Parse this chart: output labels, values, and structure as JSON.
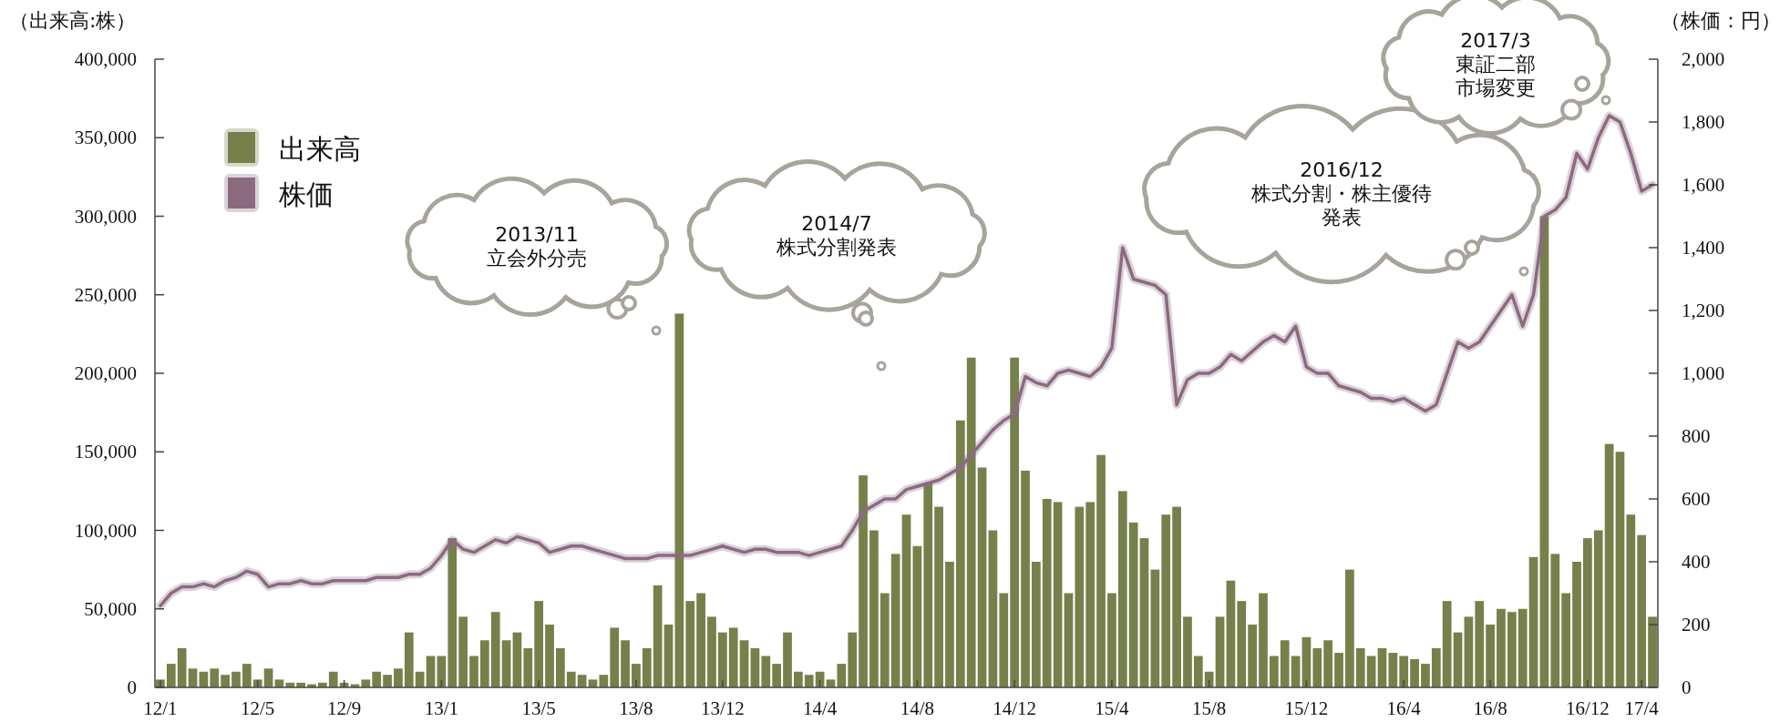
{
  "chart_data": {
    "type": "bar",
    "ylabel": "（出来高:株）",
    "y2label": "（株価：円）",
    "legend": "top left",
    "grid": false,
    "categories": [
      "12/1",
      null,
      null,
      null,
      null,
      null,
      null,
      null,
      null,
      "12/5",
      null,
      null,
      null,
      null,
      null,
      null,
      null,
      "12/9",
      null,
      null,
      null,
      null,
      null,
      null,
      null,
      null,
      "13/1",
      null,
      null,
      null,
      null,
      null,
      null,
      null,
      null,
      "13/5",
      null,
      null,
      null,
      null,
      null,
      null,
      null,
      null,
      "13/8",
      null,
      null,
      null,
      null,
      null,
      null,
      null,
      "13/12",
      null,
      null,
      null,
      null,
      null,
      null,
      null,
      null,
      "14/4",
      null,
      null,
      null,
      null,
      null,
      null,
      null,
      null,
      "14/8",
      null,
      null,
      null,
      null,
      null,
      null,
      null,
      null,
      "14/12",
      null,
      null,
      null,
      null,
      null,
      null,
      null,
      null,
      "15/4",
      null,
      null,
      null,
      null,
      null,
      null,
      null,
      null,
      "15/8",
      null,
      null,
      null,
      null,
      null,
      null,
      null,
      null,
      "15/12",
      null,
      null,
      null,
      null,
      null,
      null,
      null,
      null,
      "16/4",
      null,
      null,
      null,
      null,
      null,
      null,
      null,
      "16/8",
      null,
      null,
      null,
      null,
      null,
      null,
      null,
      null,
      "16/12",
      null,
      null,
      null,
      null,
      "17/4",
      null
    ],
    "ylim": [
      0,
      400000
    ],
    "yticks": [
      {
        "value": 0,
        "label": "0"
      },
      {
        "value": 50000,
        "label": "50,000"
      },
      {
        "value": 100000,
        "label": "100,000"
      },
      {
        "value": 150000,
        "label": "150,000"
      },
      {
        "value": 200000,
        "label": "200,000"
      },
      {
        "value": 250000,
        "label": "250,000"
      },
      {
        "value": 300000,
        "label": "300,000"
      },
      {
        "value": 350000,
        "label": "350,000"
      },
      {
        "value": 400000,
        "label": "400,000"
      }
    ],
    "y2lim": [
      0,
      2000
    ],
    "y2ticks": [
      {
        "value": 0,
        "label": "0"
      },
      {
        "value": 200,
        "label": "200"
      },
      {
        "value": 400,
        "label": "400"
      },
      {
        "value": 600,
        "label": "600"
      },
      {
        "value": 800,
        "label": "800"
      },
      {
        "value": 1000,
        "label": "1,000"
      },
      {
        "value": 1200,
        "label": "1,200"
      },
      {
        "value": 1400,
        "label": "1,400"
      },
      {
        "value": 1600,
        "label": "1,600"
      },
      {
        "value": 1800,
        "label": "1,800"
      },
      {
        "value": 2000,
        "label": "2,000"
      }
    ],
    "series": [
      {
        "name": "出来高",
        "color": "#76804b",
        "values": [
          5000,
          15000,
          25000,
          12000,
          10000,
          12000,
          8000,
          10000,
          15000,
          5000,
          12000,
          5000,
          3000,
          3000,
          2000,
          3000,
          10000,
          3000,
          2000,
          5000,
          10000,
          8000,
          12000,
          35000,
          10000,
          20000,
          20000,
          95000,
          45000,
          20000,
          30000,
          48000,
          30000,
          35000,
          25000,
          55000,
          40000,
          25000,
          10000,
          8000,
          5000,
          8000,
          38000,
          30000,
          15000,
          25000,
          65000,
          40000,
          238000,
          55000,
          60000,
          45000,
          35000,
          38000,
          30000,
          25000,
          20000,
          15000,
          35000,
          10000,
          8000,
          10000,
          5000,
          15000,
          35000,
          135000,
          100000,
          60000,
          85000,
          110000,
          90000,
          130000,
          115000,
          80000,
          170000,
          210000,
          140000,
          100000,
          60000,
          210000,
          138000,
          80000,
          120000,
          118000,
          60000,
          115000,
          118000,
          148000,
          60000,
          125000,
          105000,
          95000,
          75000,
          110000,
          115000,
          45000,
          20000,
          10000,
          45000,
          68000,
          55000,
          40000,
          60000,
          20000,
          30000,
          20000,
          32000,
          25000,
          30000,
          22000,
          75000,
          25000,
          20000,
          25000,
          22000,
          20000,
          18000,
          15000,
          25000,
          55000,
          35000,
          45000,
          55000,
          40000,
          50000,
          48000,
          50000,
          83000,
          300000,
          85000,
          60000,
          80000,
          95000,
          100000,
          155000,
          150000,
          110000,
          97000,
          45000
        ]
      },
      {
        "name": "株価",
        "type": "line",
        "axis": "y2",
        "color": "#8b6a80",
        "values": [
          260,
          300,
          320,
          320,
          330,
          320,
          340,
          350,
          370,
          360,
          320,
          330,
          330,
          340,
          330,
          330,
          340,
          340,
          340,
          340,
          350,
          350,
          350,
          360,
          360,
          380,
          420,
          470,
          440,
          430,
          450,
          470,
          460,
          480,
          470,
          460,
          430,
          440,
          450,
          450,
          440,
          430,
          420,
          410,
          410,
          410,
          420,
          420,
          420,
          420,
          430,
          440,
          450,
          440,
          430,
          440,
          440,
          430,
          430,
          430,
          420,
          430,
          440,
          450,
          500,
          560,
          580,
          600,
          600,
          630,
          640,
          650,
          660,
          680,
          700,
          740,
          780,
          820,
          850,
          870,
          990,
          970,
          960,
          1000,
          1010,
          1000,
          990,
          1020,
          1080,
          1400,
          1300,
          1290,
          1280,
          1250,
          900,
          980,
          1000,
          1000,
          1020,
          1060,
          1040,
          1070,
          1100,
          1120,
          1100,
          1150,
          1020,
          1000,
          1000,
          960,
          950,
          940,
          920,
          920,
          910,
          920,
          900,
          880,
          900,
          1000,
          1100,
          1080,
          1100,
          1150,
          1200,
          1250,
          1150,
          1250,
          1500,
          1520,
          1560,
          1700,
          1650,
          1750,
          1820,
          1800,
          1700,
          1580,
          1600
        ]
      }
    ],
    "annotations": [
      "2013/11\n立会外分売",
      "2014/7\n株式分割発表",
      "2016/12\n株式分割・株主優待発表",
      "2017/3\n東証二部市場変更"
    ]
  }
}
